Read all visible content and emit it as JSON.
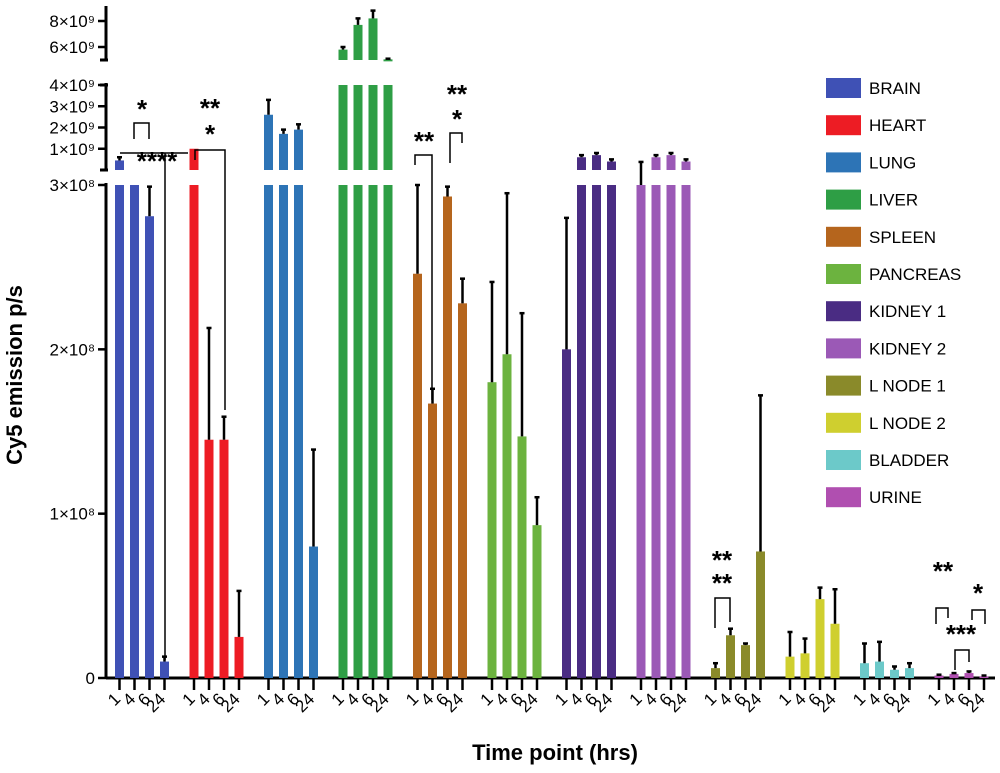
{
  "chart_data": {
    "type": "bar",
    "title": "",
    "ylabel": "Cy5 emission p/s",
    "xlabel": "Time point (hrs)",
    "time_points": [
      "1",
      "4",
      "6",
      "24"
    ],
    "y_axis": {
      "scale": "broken",
      "segments": [
        {
          "range": [
            0,
            300000000
          ],
          "ticks": [
            0,
            100000000,
            200000000,
            300000000
          ]
        },
        {
          "range": [
            0,
            4000000000
          ],
          "ticks": [
            1000000000,
            2000000000,
            3000000000,
            4000000000
          ]
        },
        {
          "range": [
            5000000000,
            9000000000
          ],
          "ticks": [
            6000000000,
            8000000000
          ]
        }
      ]
    },
    "tick_labels": {
      "0": "0",
      "100000000": "1×10⁸",
      "200000000": "2×10⁸",
      "300000000": "3×10⁸",
      "1000000000": "1×10⁹",
      "2000000000": "2×10⁹",
      "3000000000": "3×10⁹",
      "4000000000": "4×10⁹",
      "6000000000": "6×10⁹",
      "8000000000": "8×10⁹"
    },
    "legend_position": "right",
    "series": [
      {
        "name": "BRAIN",
        "color": "#3f51b5",
        "values": [
          450000000,
          300000000,
          281000000,
          10000000
        ],
        "errors": [
          150000000,
          0,
          18000000,
          3000000
        ]
      },
      {
        "name": "HEART",
        "color": "#ed1c24",
        "values": [
          1000000000,
          145000000,
          145000000,
          25000000
        ],
        "errors": [
          0,
          68000000,
          14000000,
          28000000
        ]
      },
      {
        "name": "LUNG",
        "color": "#2d74b6",
        "values": [
          2600000000,
          1700000000,
          1900000000,
          80000000
        ],
        "errors": [
          700000000,
          200000000,
          250000000,
          59000000
        ]
      },
      {
        "name": "LIVER",
        "color": "#2e9e45",
        "values": [
          5800000000,
          7700000000,
          8200000000,
          5050000000
        ],
        "errors": [
          200000000,
          500000000,
          600000000,
          50000000
        ]
      },
      {
        "name": "SPLEEN",
        "color": "#b5651d",
        "values": [
          246000000,
          167000000,
          293000000,
          228000000
        ],
        "errors": [
          54000000,
          9000000,
          6000000,
          15000000
        ]
      },
      {
        "name": "PANCREAS",
        "color": "#6cb33f",
        "values": [
          180000000,
          197000000,
          147000000,
          93000000
        ],
        "errors": [
          61000000,
          98000000,
          75000000,
          17000000
        ]
      },
      {
        "name": "KIDNEY 1",
        "color": "#4a2c83",
        "values": [
          200000000,
          600000000,
          700000000,
          400000000
        ],
        "errors": [
          80000000,
          100000000,
          100000000,
          100000000
        ]
      },
      {
        "name": "KIDNEY 2",
        "color": "#9b59b6",
        "values": [
          300000000,
          600000000,
          700000000,
          400000000
        ],
        "errors": [
          80000000,
          100000000,
          100000000,
          100000000
        ]
      },
      {
        "name": "L NODE 1",
        "color": "#8a8a2a",
        "values": [
          6000000,
          26000000,
          20000000,
          77000000
        ],
        "errors": [
          3000000,
          4000000,
          1000000,
          95000000
        ]
      },
      {
        "name": "L NODE 2",
        "color": "#cfcf2f",
        "values": [
          13000000,
          15000000,
          48000000,
          33000000
        ],
        "errors": [
          15000000,
          9000000,
          7000000,
          21000000
        ]
      },
      {
        "name": "BLADDER",
        "color": "#6cc9c9",
        "values": [
          9000000,
          10000000,
          5000000,
          6000000
        ],
        "errors": [
          12000000,
          12000000,
          2000000,
          3000000
        ]
      },
      {
        "name": "URINE",
        "color": "#b04fb0",
        "values": [
          1500000,
          2500000,
          3000000,
          1000000
        ],
        "errors": [
          500000,
          500000,
          1000000,
          500000
        ]
      }
    ],
    "annotations": [
      "*",
      "****",
      "**",
      "*",
      "**",
      "**",
      "*",
      "**",
      "**",
      "**",
      "***",
      "*"
    ]
  }
}
